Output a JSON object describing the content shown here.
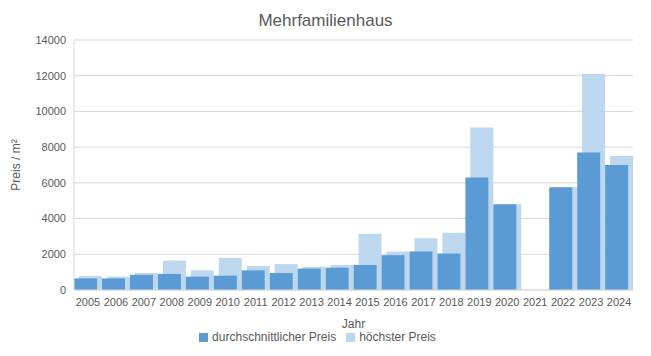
{
  "chart_data": {
    "type": "bar",
    "title": "Mehrfamilienhaus",
    "x_label": "Jahr",
    "y_label": "Preis / m²",
    "categories": [
      "2005",
      "2006",
      "2007",
      "2008",
      "2009",
      "2010",
      "2011",
      "2012",
      "2013",
      "2014",
      "2015",
      "2016",
      "2017",
      "2018",
      "2019",
      "2020",
      "2021",
      "2022",
      "2023",
      "2024"
    ],
    "series": [
      {
        "name": "höchster Preis",
        "color": "#bdd7ee",
        "values": [
          780,
          750,
          950,
          1650,
          1100,
          1800,
          1350,
          1450,
          1300,
          1400,
          3150,
          2150,
          2900,
          3200,
          9100,
          4800,
          null,
          5750,
          12100,
          7500
        ]
      },
      {
        "name": "durchschnittlicher Preis",
        "color": "#5b9bd5",
        "values": [
          650,
          650,
          850,
          900,
          750,
          800,
          1100,
          950,
          1200,
          1250,
          1400,
          1950,
          2150,
          2050,
          6300,
          4800,
          null,
          5750,
          7700,
          7000
        ]
      }
    ],
    "ylim": [
      0,
      14000
    ],
    "yticks": [
      0,
      2000,
      4000,
      6000,
      8000,
      10000,
      12000,
      14000
    ],
    "grid": true,
    "legend": "bottom"
  }
}
